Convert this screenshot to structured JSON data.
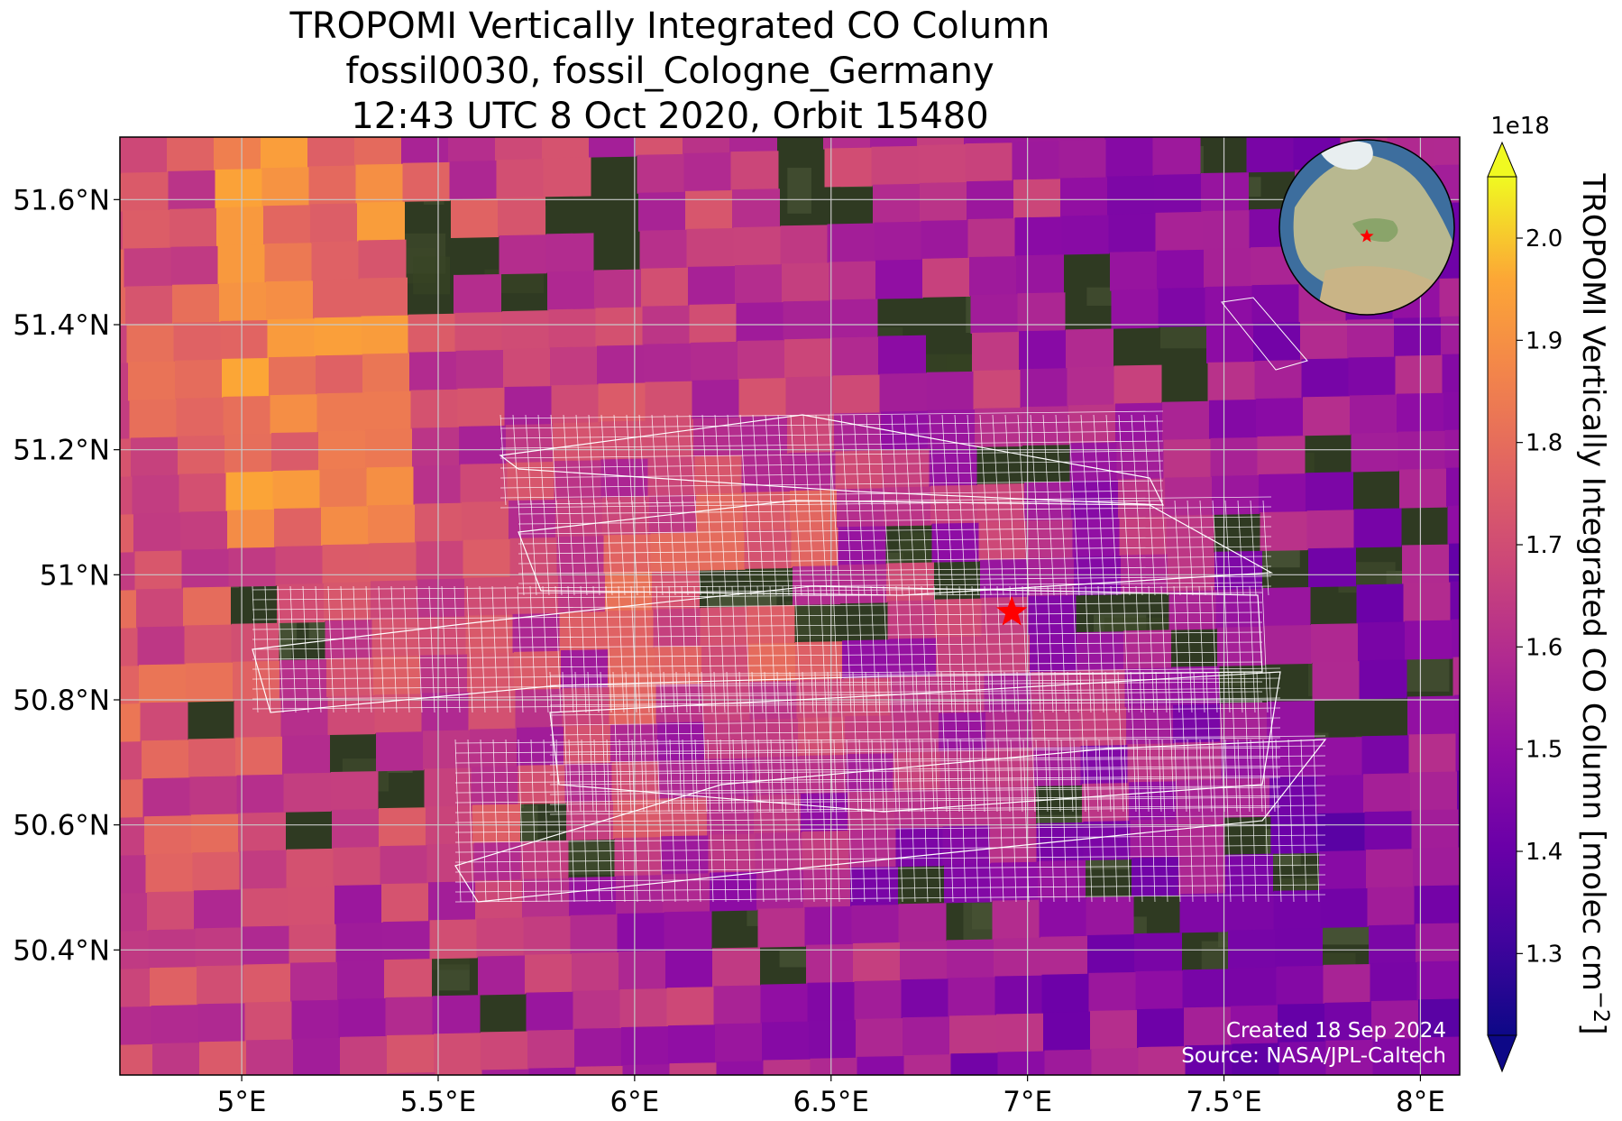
{
  "title": {
    "line1": "TROPOMI Vertically Integrated CO Column",
    "line2": "fossil0030, fossil_Cologne_Germany",
    "line3": "12:43 UTC 8 Oct 2020, Orbit 15480"
  },
  "map": {
    "lon_range": [
      4.69,
      8.1
    ],
    "lat_range": [
      50.2,
      51.7
    ],
    "lon_ticks": [
      {
        "value": 5.0,
        "label": "5°E"
      },
      {
        "value": 5.5,
        "label": "5.5°E"
      },
      {
        "value": 6.0,
        "label": "6°E"
      },
      {
        "value": 6.5,
        "label": "6.5°E"
      },
      {
        "value": 7.0,
        "label": "7°E"
      },
      {
        "value": 7.5,
        "label": "7.5°E"
      },
      {
        "value": 8.0,
        "label": "8°E"
      }
    ],
    "lat_ticks": [
      {
        "value": 51.6,
        "label": "51.6°N"
      },
      {
        "value": 51.4,
        "label": "51.4°N"
      },
      {
        "value": 51.2,
        "label": "51.2°N"
      },
      {
        "value": 51.0,
        "label": "51°N"
      },
      {
        "value": 50.8,
        "label": "50.8°N"
      },
      {
        "value": 50.6,
        "label": "50.6°N"
      },
      {
        "value": 50.4,
        "label": "50.4°N"
      }
    ],
    "gridlines": true,
    "target_marker": {
      "lon": 6.96,
      "lat": 50.94,
      "color": "#ff0000"
    },
    "credit_line1": "Created 18 Sep 2024",
    "credit_line2": "Source: NASA/JPL-Caltech",
    "inset_globe": {
      "center_lon": 6.96,
      "center_lat": 50.94
    }
  },
  "colorbar": {
    "label": "TROPOMI Vertically Integrated CO Column [molec cm",
    "label_superscript": "−2",
    "label_close": "]",
    "exponent": "1e18",
    "vmin": 1.22,
    "vmax": 2.06,
    "ticks": [
      "1.3",
      "1.4",
      "1.5",
      "1.6",
      "1.7",
      "1.8",
      "1.9",
      "2.0"
    ],
    "tick_values": [
      1.3,
      1.4,
      1.5,
      1.6,
      1.7,
      1.8,
      1.9,
      2.0
    ],
    "colormap": "plasma",
    "extend": "both"
  },
  "chart_data": {
    "type": "heatmap",
    "title": "TROPOMI Vertically Integrated CO Column",
    "xlabel": "",
    "ylabel": "",
    "units": "1e18 molec cm-2",
    "x_range": [
      4.69,
      8.1
    ],
    "y_range": [
      50.2,
      51.7
    ],
    "value_range": [
      1.22,
      2.06
    ],
    "colormap": "plasma"
  }
}
